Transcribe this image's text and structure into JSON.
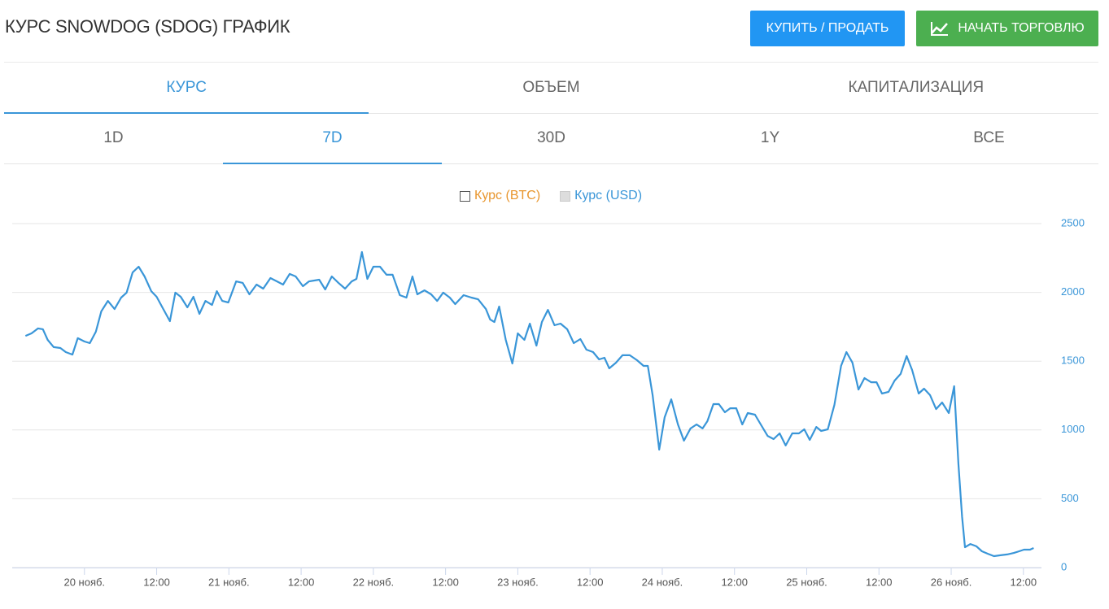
{
  "header": {
    "title": "КУРС SNOWDOG (SDOG) ГРАФИК",
    "buttons": [
      "КУПИТЬ / ПРОДАТЬ",
      "НАЧАТЬ ТОРГОВЛЮ"
    ]
  },
  "tabs": {
    "metric": [
      {
        "label": "КУРС",
        "active": true
      },
      {
        "label": "ОБЪЕМ",
        "active": false
      },
      {
        "label": "КАПИТАЛИЗАЦИЯ",
        "active": false
      }
    ],
    "period": [
      {
        "label": "1D",
        "active": false
      },
      {
        "label": "7D",
        "active": true
      },
      {
        "label": "30D",
        "active": false
      },
      {
        "label": "1Y",
        "active": false
      },
      {
        "label": "ВСЕ",
        "active": false
      }
    ]
  },
  "chart_data": {
    "type": "line",
    "x": [
      -9.8,
      -8.8,
      -7.7,
      -6.9,
      -6.1,
      -5.1,
      -4.0,
      -3.1,
      -2.0,
      -1.1,
      0,
      0.9,
      1.9,
      2.8,
      3.9,
      5.0,
      6.1,
      7.0,
      8.0,
      9.0,
      10.0,
      11.1,
      12.0,
      13.1,
      14.2,
      15.1,
      16.0,
      17.1,
      18.1,
      19.1,
      20.1,
      21.2,
      22.0,
      22.9,
      23.9,
      25.2,
      26.3,
      27.4,
      28.6,
      29.7,
      30.9,
      32.0,
      33.0,
      34.1,
      35.1,
      36.3,
      37.3,
      39.0,
      40.0,
      41.1,
      42.2,
      43.3,
      44.4,
      45.2,
      46.1,
      47.0,
      48.0,
      49.1,
      50.2,
      51.2,
      52.4,
      53.5,
      54.5,
      55.3,
      56.5,
      57.6,
      58.6,
      59.6,
      60.7,
      61.6,
      63.0,
      64.3,
      65.4,
      66.7,
      67.4,
      68.1,
      68.9,
      70.0,
      71.1,
      72.0,
      73.1,
      74.0,
      75.1,
      76.0,
      77.0,
      78.1,
      79.1,
      80.2,
      81.3,
      82.4,
      83.4,
      84.5,
      85.5,
      86.4,
      87.2,
      88.3,
      89.4,
      90.6,
      91.8,
      92.9,
      93.6,
      94.4,
      95.5,
      96.4,
      97.5,
      98.6,
      99.6,
      100.7,
      101.7,
      102.7,
      103.5,
      104.5,
      105.4,
      106.4,
      107.3,
      108.3,
      109.3,
      110.2,
      111.4,
      112.2,
      113.5,
      114.5,
      115.5,
      116.5,
      117.6,
      118.7,
      119.6,
      120.5,
      121.6,
      122.4,
      123.5,
      124.6,
      125.7,
      126.6,
      127.6,
      128.6,
      129.6,
      130.7,
      131.6,
      132.5,
      133.6,
      134.6,
      135.6,
      136.6,
      137.5,
      138.6,
      139.5,
      140.5,
      141.5,
      142.5,
      143.6,
      144.5,
      145.2,
      145.8,
      146.3,
      147.2,
      148.2,
      149.1,
      150.1,
      151.1,
      152.2,
      153.3,
      154.4,
      155.3,
      156.1,
      157.1,
      157.7
    ],
    "series": [
      {
        "name": "Курс (BTC)",
        "color": "#e8962e",
        "visible": false
      },
      {
        "name": "Курс (USD)",
        "color": "#3a96d8",
        "visible": true,
        "values": [
          1684,
          1702,
          1738,
          1732,
          1655,
          1602,
          1596,
          1566,
          1548,
          1667,
          1643,
          1631,
          1714,
          1862,
          1938,
          1879,
          1962,
          1998,
          2145,
          2187,
          2116,
          2009,
          1968,
          1879,
          1791,
          1998,
          1968,
          1891,
          1968,
          1844,
          1938,
          1909,
          2009,
          1938,
          1927,
          2080,
          2069,
          1986,
          2057,
          2027,
          2104,
          2080,
          2057,
          2134,
          2116,
          2045,
          2080,
          2092,
          2021,
          2116,
          2069,
          2027,
          2080,
          2098,
          2293,
          2098,
          2187,
          2187,
          2128,
          2128,
          1980,
          1962,
          2116,
          1986,
          2015,
          1986,
          1938,
          1998,
          1962,
          1915,
          1980,
          1962,
          1950,
          1879,
          1803,
          1785,
          1897,
          1655,
          1483,
          1702,
          1655,
          1773,
          1613,
          1785,
          1873,
          1761,
          1773,
          1732,
          1631,
          1661,
          1584,
          1566,
          1513,
          1525,
          1448,
          1489,
          1543,
          1543,
          1507,
          1466,
          1466,
          1253,
          857,
          1093,
          1223,
          1040,
          922,
          1011,
          1040,
          1011,
          1064,
          1188,
          1188,
          1129,
          1158,
          1158,
          1040,
          1123,
          1111,
          1052,
          957,
          934,
          975,
          887,
          975,
          975,
          1005,
          928,
          1022,
          993,
          1005,
          1182,
          1466,
          1566,
          1489,
          1294,
          1377,
          1347,
          1347,
          1265,
          1277,
          1359,
          1407,
          1537,
          1436,
          1265,
          1300,
          1253,
          1152,
          1200,
          1123,
          1318,
          756,
          372,
          148,
          171,
          154,
          118,
          100,
          83,
          89,
          95,
          106,
          118,
          130,
          130,
          142
        ]
      }
    ],
    "xlim": [
      -12,
      159
    ],
    "xticks": [
      {
        "value": 0,
        "label": "20 нояб."
      },
      {
        "value": 12,
        "label": "12:00"
      },
      {
        "value": 24,
        "label": "21 нояб."
      },
      {
        "value": 36,
        "label": "12:00"
      },
      {
        "value": 48,
        "label": "22 нояб."
      },
      {
        "value": 60,
        "label": "12:00"
      },
      {
        "value": 72,
        "label": "23 нояб."
      },
      {
        "value": 84,
        "label": "12:00"
      },
      {
        "value": 96,
        "label": "24 нояб."
      },
      {
        "value": 108,
        "label": "12:00"
      },
      {
        "value": 120,
        "label": "25 нояб."
      },
      {
        "value": 132,
        "label": "12:00"
      },
      {
        "value": 144,
        "label": "26 нояб."
      },
      {
        "value": 156,
        "label": "12:00"
      }
    ],
    "ylim": [
      0,
      2500
    ],
    "yticks": [
      0,
      500,
      1000,
      1500,
      2000,
      2500
    ],
    "grid": true
  }
}
